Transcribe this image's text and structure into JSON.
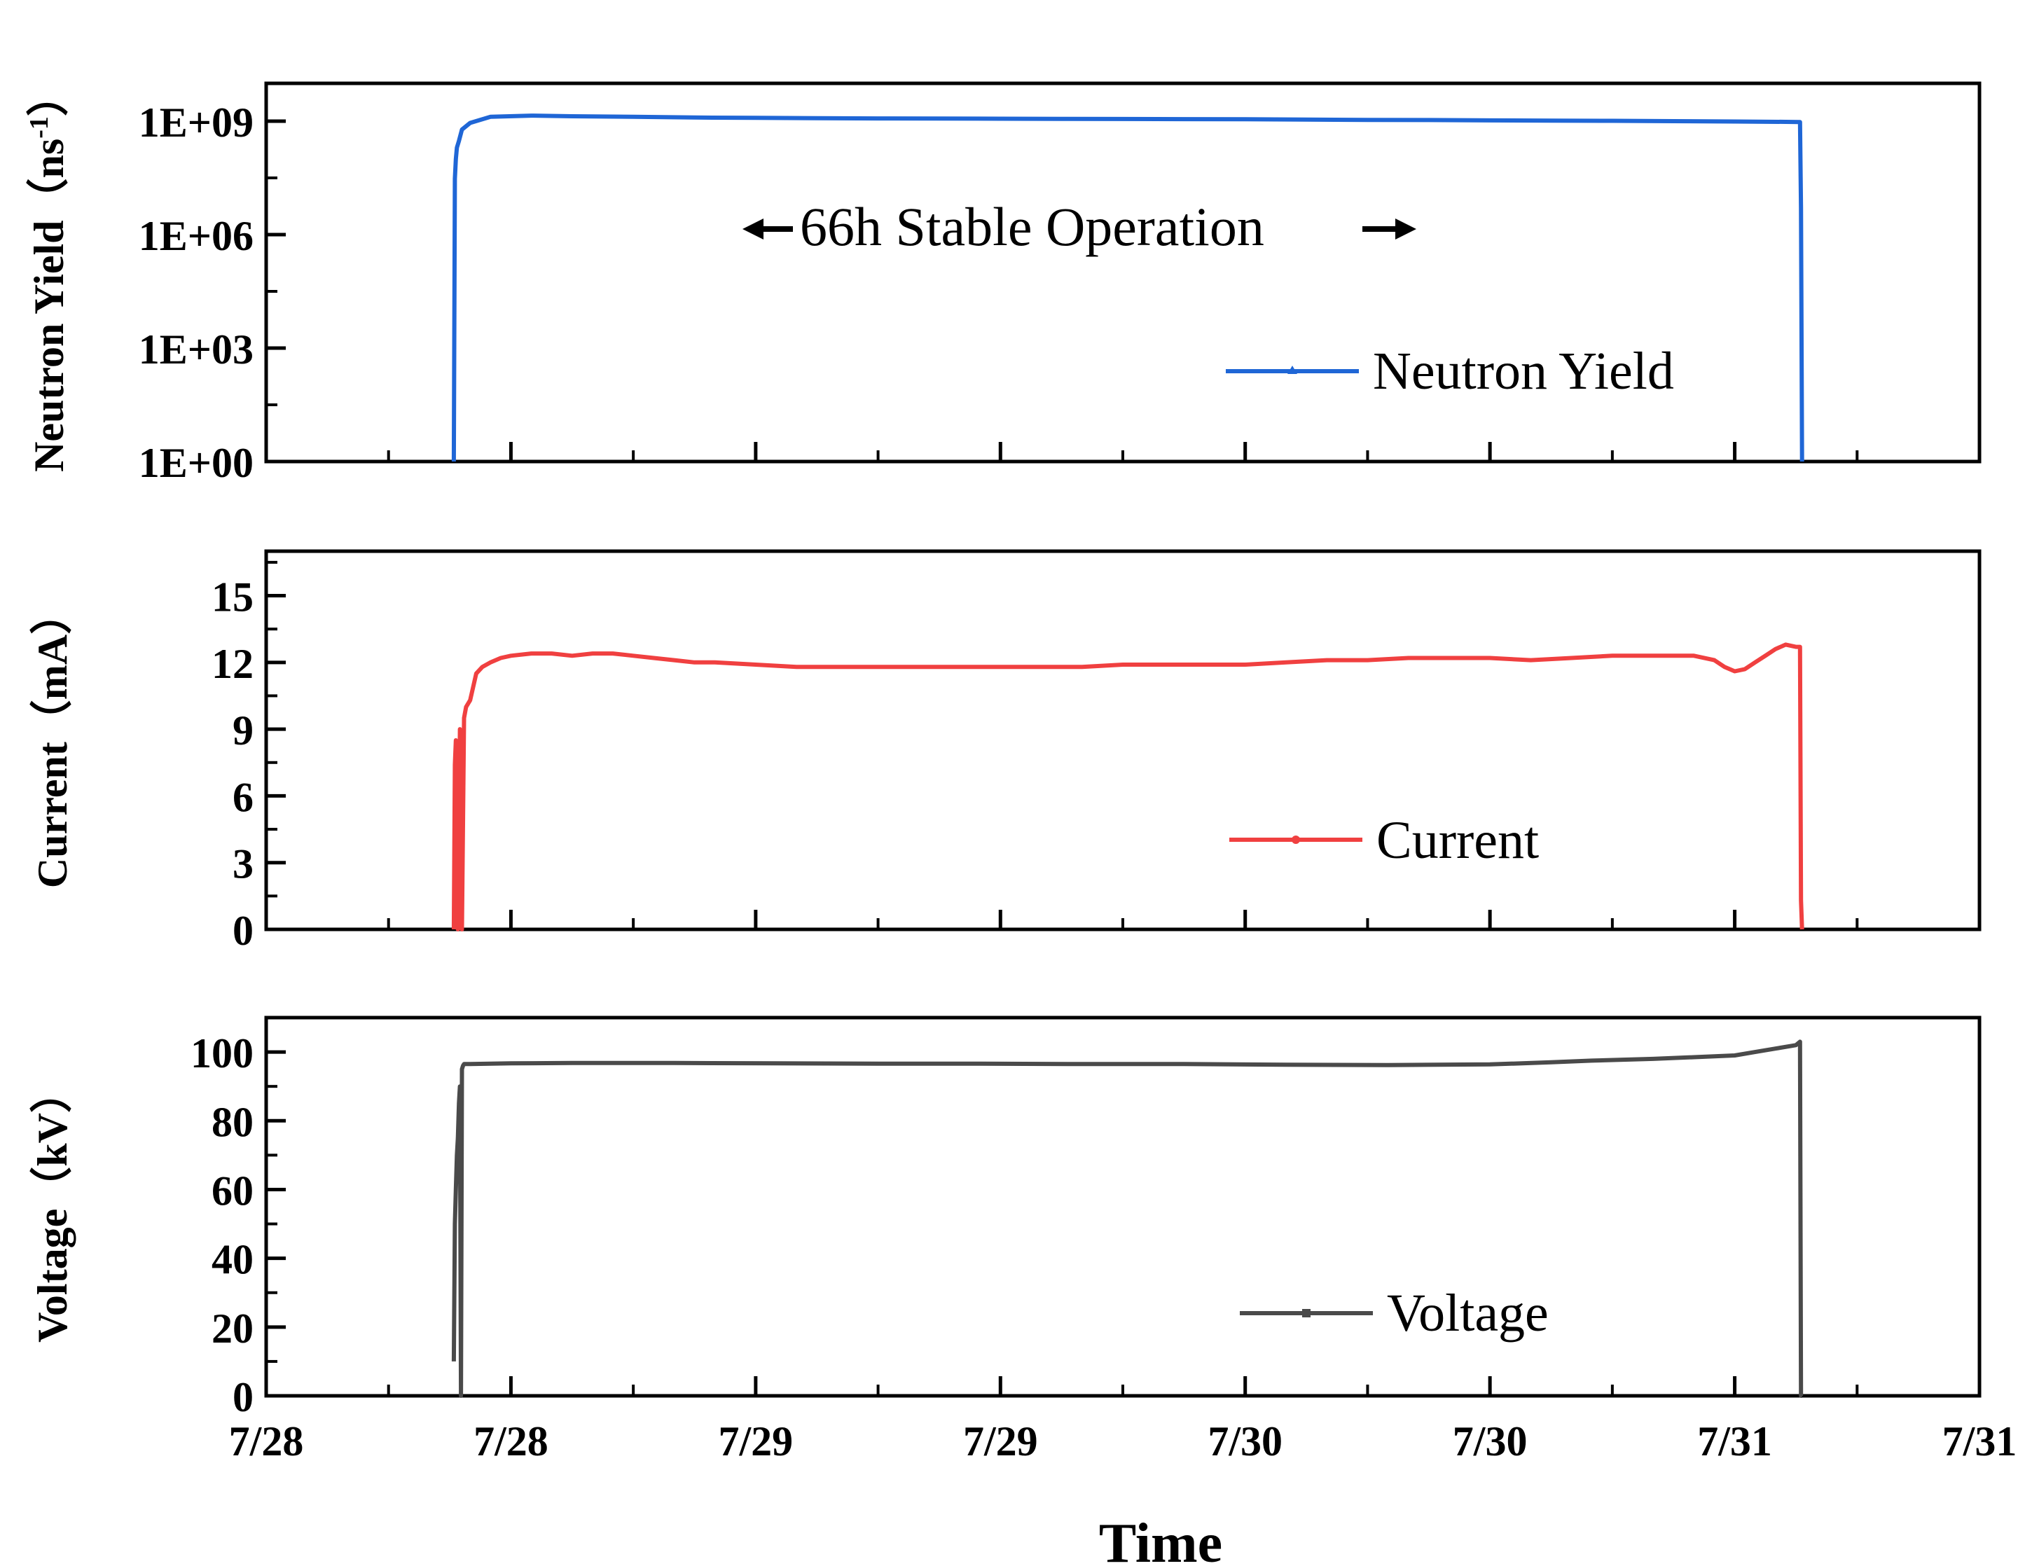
{
  "chart_data": {
    "x_tick_labels": [
      "7/28",
      "7/28",
      "7/29",
      "7/29",
      "7/30",
      "7/30",
      "7/31",
      "7/31"
    ],
    "xlabel": "Time",
    "x_unit_note": "x values are hours from the first tick (7/28)",
    "xlim": [
      0,
      84
    ],
    "panels": [
      {
        "type": "line",
        "ylabel_main": "Neutron Yield（ns",
        "ylabel_sup": "-1",
        "ylabel_end": "）",
        "yscale": "log",
        "ylim": [
          1,
          10000000000.0
        ],
        "y_ticks": [
          "1E+00",
          "1E+03",
          "1E+06",
          "1E+09"
        ],
        "annotation": "66h Stable Operation",
        "color": "#1f66d6",
        "series": [
          {
            "name": "Neutron Yield",
            "x": [
              9.2,
              9.25,
              9.3,
              9.35,
              9.45,
              9.6,
              10,
              11,
              13,
              15,
              18,
              21,
              24,
              27,
              30,
              33,
              36,
              39,
              42,
              45,
              48,
              51,
              54,
              57,
              60,
              63,
              66,
              69,
              72,
              74.5,
              75.2,
              75.25,
              75.3
            ],
            "y": [
              1,
              30000000.0,
              100000000.0,
              200000000.0,
              300000000.0,
              600000000.0,
              900000000.0,
              1300000000.0,
              1400000000.0,
              1350000000.0,
              1300000000.0,
              1250000000.0,
              1220000000.0,
              1200000000.0,
              1180000000.0,
              1170000000.0,
              1160000000.0,
              1150000000.0,
              1140000000.0,
              1130000000.0,
              1120000000.0,
              1100000000.0,
              1080000000.0,
              1070000000.0,
              1050000000.0,
              1030000000.0,
              1020000000.0,
              1000000000.0,
              980000000.0,
              960000000.0,
              950000000.0,
              5000000.0,
              1
            ]
          }
        ]
      },
      {
        "type": "line",
        "ylabel": "Current（mA）",
        "yscale": "linear",
        "ylim": [
          0,
          17
        ],
        "y_ticks": [
          0,
          3,
          6,
          9,
          12,
          15
        ],
        "color": "#f04040",
        "series": [
          {
            "name": "Current",
            "x": [
              9.2,
              9.25,
              9.3,
              9.4,
              9.5,
              9.6,
              9.7,
              9.8,
              10,
              10.3,
              10.6,
              11,
              11.5,
              12,
              13,
              14,
              15,
              16,
              17,
              18,
              19,
              20,
              21,
              22,
              24,
              26,
              28,
              30,
              32,
              34,
              36,
              38,
              40,
              42,
              44,
              46,
              48,
              50,
              52,
              54,
              56,
              58,
              60,
              62,
              64,
              66,
              68,
              69,
              70,
              71,
              71.5,
              72,
              72.5,
              73,
              73.5,
              74,
              74.5,
              75,
              75.2,
              75.25,
              75.3
            ],
            "y": [
              0,
              7.4,
              8.5,
              0,
              9.0,
              0,
              9.5,
              10.0,
              10.3,
              11.5,
              11.8,
              12.0,
              12.2,
              12.3,
              12.4,
              12.4,
              12.3,
              12.4,
              12.4,
              12.3,
              12.2,
              12.1,
              12.0,
              12.0,
              11.9,
              11.8,
              11.8,
              11.8,
              11.8,
              11.8,
              11.8,
              11.8,
              11.8,
              11.9,
              11.9,
              11.9,
              11.9,
              12.0,
              12.1,
              12.1,
              12.2,
              12.2,
              12.2,
              12.1,
              12.2,
              12.3,
              12.3,
              12.3,
              12.3,
              12.1,
              11.8,
              11.6,
              11.7,
              12.0,
              12.3,
              12.6,
              12.8,
              12.7,
              12.7,
              1.3,
              0
            ]
          }
        ]
      },
      {
        "type": "line",
        "ylabel": "Voltage（kV）",
        "yscale": "linear",
        "ylim": [
          0,
          110
        ],
        "y_ticks": [
          0,
          20,
          40,
          60,
          80,
          100
        ],
        "color": "#4a4a4a",
        "series": [
          {
            "name": "Voltage",
            "x": [
              9.2,
              9.25,
              9.3,
              9.35,
              9.4,
              9.45,
              9.5,
              9.55,
              9.6,
              9.65,
              9.7,
              10,
              12,
              15,
              20,
              25,
              30,
              35,
              40,
              45,
              50,
              55,
              60,
              63,
              65,
              68,
              70,
              72,
              73,
              74,
              75,
              75.2,
              75.25,
              75.3
            ],
            "y": [
              10,
              50,
              60,
              70,
              75,
              85,
              90,
              0,
              95,
              96,
              96.5,
              96.5,
              96.7,
              96.8,
              96.8,
              96.7,
              96.6,
              96.6,
              96.5,
              96.5,
              96.3,
              96.2,
              96.4,
              97,
              97.5,
              98,
              98.5,
              99,
              100,
              101,
              102,
              103,
              0,
              0
            ]
          }
        ]
      }
    ]
  }
}
